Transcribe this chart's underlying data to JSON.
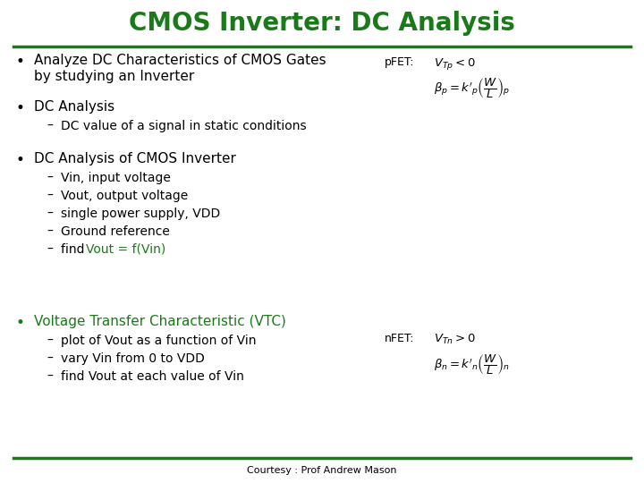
{
  "title": "CMOS Inverter: DC Analysis",
  "title_color": "#1a7a1a",
  "title_fontsize": 20,
  "bg_color": "#ffffff",
  "green_color": "#1a7a1a",
  "black_color": "#000000",
  "line_color": "#1a7a1a",
  "footer": "Courtesy : Prof Andrew Mason",
  "bullet1_main_line1": "Analyze DC Characteristics of CMOS Gates",
  "bullet1_main_line2": "by studying an Inverter",
  "bullet2_main": "DC Analysis",
  "bullet2_sub": "DC value of a signal in static conditions",
  "bullet3_main": "DC Analysis of CMOS Inverter",
  "bullet3_subs": [
    "Vin, input voltage",
    "Vout, output voltage",
    "single power supply, VDD",
    "Ground reference"
  ],
  "bullet3_sub_green_prefix": "find ",
  "bullet3_sub_green_rest": "Vout = f(Vin)",
  "bullet4_main": "Voltage Transfer Characteristic (VTC)",
  "bullet4_subs": [
    "plot of Vout as a function of Vin",
    "vary Vin from 0 to VDD",
    "find Vout at each value of Vin"
  ],
  "pfet_label": "pFET:",
  "pfet_eq1": "$V_{Tp} < 0$",
  "pfet_eq2": "$\\beta_p = k'_p \\left(\\dfrac{W}{L}\\right)_p$",
  "nfet_label": "nFET:",
  "nfet_eq1": "$V_{Tn} > 0$",
  "nfet_eq2": "$\\beta_n = k'_n \\left(\\dfrac{W}{L}\\right)_n$"
}
